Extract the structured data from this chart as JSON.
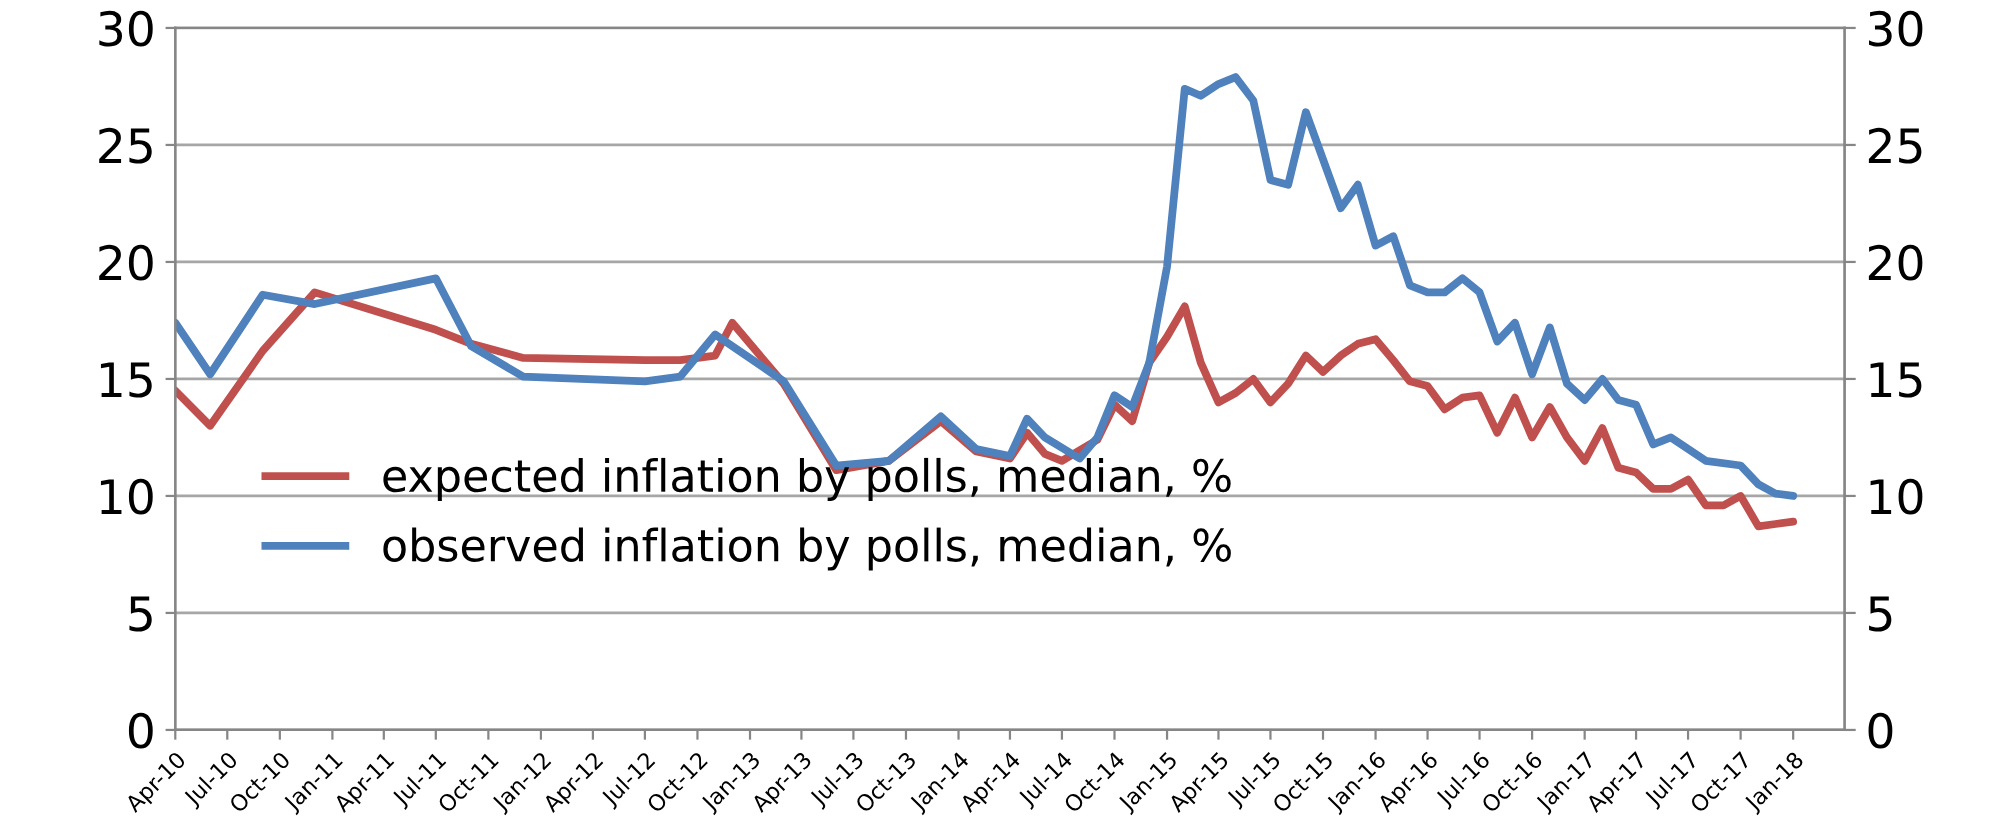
{
  "chart_data": {
    "type": "line",
    "xlim": [
      "2010-04",
      "2018-04"
    ],
    "xticks": [
      {
        "value": "2010-04",
        "label": "Apr-10"
      },
      {
        "value": "2010-07",
        "label": "Jul-10"
      },
      {
        "value": "2010-10",
        "label": "Oct-10"
      },
      {
        "value": "2011-01",
        "label": "Jan-11"
      },
      {
        "value": "2011-04",
        "label": "Apr-11"
      },
      {
        "value": "2011-07",
        "label": "Jul-11"
      },
      {
        "value": "2011-10",
        "label": "Oct-11"
      },
      {
        "value": "2012-01",
        "label": "Jan-12"
      },
      {
        "value": "2012-04",
        "label": "Apr-12"
      },
      {
        "value": "2012-07",
        "label": "Jul-12"
      },
      {
        "value": "2012-10",
        "label": "Oct-12"
      },
      {
        "value": "2013-01",
        "label": "Jan-13"
      },
      {
        "value": "2013-04",
        "label": "Apr-13"
      },
      {
        "value": "2013-07",
        "label": "Jul-13"
      },
      {
        "value": "2013-10",
        "label": "Oct-13"
      },
      {
        "value": "2014-01",
        "label": "Jan-14"
      },
      {
        "value": "2014-04",
        "label": "Apr-14"
      },
      {
        "value": "2014-07",
        "label": "Jul-14"
      },
      {
        "value": "2014-10",
        "label": "Oct-14"
      },
      {
        "value": "2015-01",
        "label": "Jan-15"
      },
      {
        "value": "2015-04",
        "label": "Apr-15"
      },
      {
        "value": "2015-07",
        "label": "Jul-15"
      },
      {
        "value": "2015-10",
        "label": "Oct-15"
      },
      {
        "value": "2016-01",
        "label": "Jan-16"
      },
      {
        "value": "2016-04",
        "label": "Apr-16"
      },
      {
        "value": "2016-07",
        "label": "Jul-16"
      },
      {
        "value": "2016-10",
        "label": "Oct-16"
      },
      {
        "value": "2017-01",
        "label": "Jan-17"
      },
      {
        "value": "2017-04",
        "label": "Apr-17"
      },
      {
        "value": "2017-07",
        "label": "Jul-17"
      },
      {
        "value": "2017-10",
        "label": "Oct-17"
      },
      {
        "value": "2018-01",
        "label": "Jan-18"
      }
    ],
    "ylim": [
      0,
      30
    ],
    "yticks": [
      0,
      5,
      10,
      15,
      20,
      25,
      30
    ],
    "y2lim": [
      0,
      30
    ],
    "y2ticks": [
      0,
      5,
      10,
      15,
      20,
      25,
      30
    ],
    "grid": "y",
    "legend": "bottom left",
    "marker": "none",
    "line_style": "solid",
    "series": [
      {
        "name": "expected inflation by polls, median, %",
        "color": "#c0504d",
        "x": [
          "2010-04",
          "2010-06",
          "2010-09",
          "2010-12",
          "2011-07",
          "2011-09",
          "2011-12",
          "2012-07",
          "2012-09",
          "2012-11",
          "2012-12",
          "2013-03",
          "2013-06",
          "2013-09",
          "2013-12",
          "2014-02",
          "2014-04",
          "2014-05",
          "2014-06",
          "2014-07",
          "2014-09",
          "2014-10",
          "2014-11",
          "2014-12",
          "2015-01",
          "2015-02",
          "2015-03",
          "2015-04",
          "2015-05",
          "2015-06",
          "2015-07",
          "2015-08",
          "2015-09",
          "2015-10",
          "2015-11",
          "2015-12",
          "2016-01",
          "2016-02",
          "2016-03",
          "2016-04",
          "2016-05",
          "2016-06",
          "2016-07",
          "2016-08",
          "2016-09",
          "2016-10",
          "2016-11",
          "2016-12",
          "2017-01",
          "2017-02",
          "2017-03",
          "2017-04",
          "2017-05",
          "2017-06",
          "2017-07",
          "2017-08",
          "2017-09",
          "2017-10",
          "2017-11",
          "2017-12",
          "2018-01"
        ],
        "values": [
          14.5,
          13.0,
          16.2,
          18.7,
          17.1,
          16.5,
          15.9,
          15.8,
          15.8,
          16.0,
          17.4,
          14.8,
          11.1,
          11.5,
          13.2,
          11.9,
          11.6,
          12.7,
          11.8,
          11.5,
          12.4,
          13.9,
          13.2,
          15.7,
          16.8,
          18.1,
          15.7,
          14.0,
          14.4,
          15.0,
          14.0,
          14.8,
          16.0,
          15.3,
          16.0,
          16.5,
          16.7,
          15.8,
          14.9,
          14.7,
          13.7,
          14.2,
          14.3,
          12.7,
          14.2,
          12.5,
          13.8,
          12.5,
          11.5,
          12.9,
          11.2,
          11.0,
          10.3,
          10.3,
          10.7,
          9.6,
          9.6,
          10.0,
          8.7,
          8.8,
          8.9
        ]
      },
      {
        "name": "observed inflation by polls, median, %",
        "color": "#4f81bd",
        "x": [
          "2010-04",
          "2010-06",
          "2010-09",
          "2010-12",
          "2011-07",
          "2011-09",
          "2011-12",
          "2012-07",
          "2012-09",
          "2012-11",
          "2013-03",
          "2013-06",
          "2013-09",
          "2013-12",
          "2014-02",
          "2014-04",
          "2014-05",
          "2014-06",
          "2014-08",
          "2014-09",
          "2014-10",
          "2014-11",
          "2014-12",
          "2015-01",
          "2015-02",
          "2015-03",
          "2015-04",
          "2015-05",
          "2015-06",
          "2015-07",
          "2015-08",
          "2015-09",
          "2015-11",
          "2015-12",
          "2016-01",
          "2016-02",
          "2016-03",
          "2016-04",
          "2016-05",
          "2016-06",
          "2016-07",
          "2016-08",
          "2016-09",
          "2016-10",
          "2016-11",
          "2016-12",
          "2017-01",
          "2017-02",
          "2017-03",
          "2017-04",
          "2017-05",
          "2017-06",
          "2017-08",
          "2017-10",
          "2017-11",
          "2017-12",
          "2018-01"
        ],
        "values": [
          17.4,
          15.2,
          18.6,
          18.2,
          19.3,
          16.4,
          15.1,
          14.9,
          15.1,
          16.9,
          14.9,
          11.3,
          11.5,
          13.4,
          12.0,
          11.7,
          13.3,
          12.5,
          11.6,
          12.5,
          14.3,
          13.8,
          15.7,
          19.8,
          27.4,
          27.1,
          27.6,
          27.9,
          26.9,
          23.5,
          23.3,
          26.4,
          22.3,
          23.3,
          20.7,
          21.1,
          19.0,
          18.7,
          18.7,
          19.3,
          18.7,
          16.6,
          17.4,
          15.2,
          17.2,
          14.8,
          14.1,
          15.0,
          14.1,
          13.9,
          12.2,
          12.5,
          11.5,
          11.3,
          10.5,
          10.1,
          10.0
        ]
      }
    ]
  }
}
